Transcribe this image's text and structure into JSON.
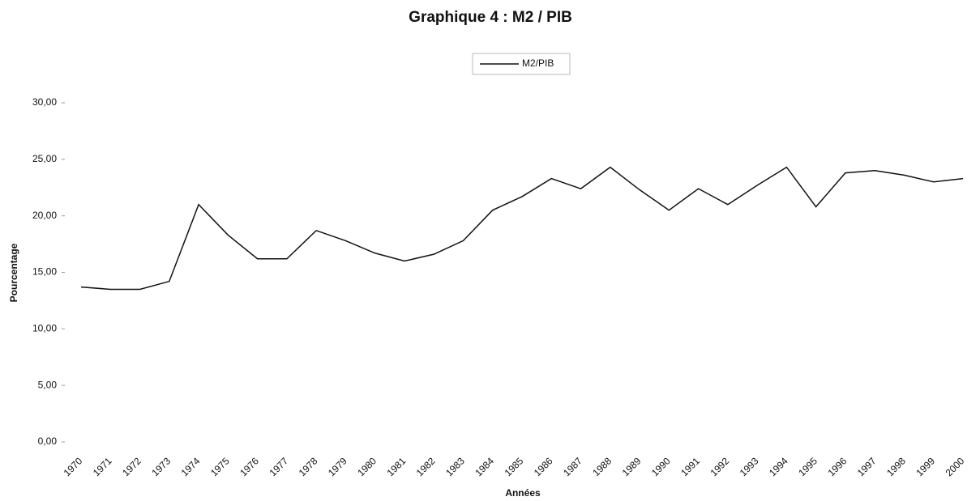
{
  "chart_data": {
    "type": "line",
    "title": "Graphique 4 : M2 / PIB",
    "x_label": "Années",
    "y_label": "Pourcentage",
    "categories": [
      "1970",
      "1971",
      "1972",
      "1973",
      "1974",
      "1975",
      "1976",
      "1977",
      "1978",
      "1979",
      "1980",
      "1981",
      "1982",
      "1983",
      "1984",
      "1985",
      "1986",
      "1987",
      "1988",
      "1989",
      "1990",
      "1991",
      "1992",
      "1993",
      "1994",
      "1995",
      "1996",
      "1997",
      "1998",
      "1999",
      "2000"
    ],
    "series": [
      {
        "name": "M2/PIB",
        "color": "#111111",
        "values": [
          13.7,
          13.5,
          13.5,
          14.2,
          21.0,
          18.3,
          16.2,
          16.2,
          18.7,
          17.8,
          16.7,
          16.0,
          16.6,
          17.8,
          20.5,
          21.7,
          23.3,
          22.4,
          24.3,
          22.3,
          20.5,
          22.4,
          21.0,
          22.7,
          24.3,
          20.8,
          23.8,
          24.0,
          23.6,
          23.0,
          23.3
        ]
      }
    ],
    "ylim": [
      0,
      30
    ],
    "yticks": [
      {
        "value": 0,
        "label": "0,00"
      },
      {
        "value": 5,
        "label": "5,00"
      },
      {
        "value": 10,
        "label": "10,00"
      },
      {
        "value": 15,
        "label": "15,00"
      },
      {
        "value": 20,
        "label": "20,00"
      },
      {
        "value": 25,
        "label": "25,00"
      },
      {
        "value": 30,
        "label": "30,00"
      }
    ],
    "grid": false,
    "legend": "top"
  }
}
